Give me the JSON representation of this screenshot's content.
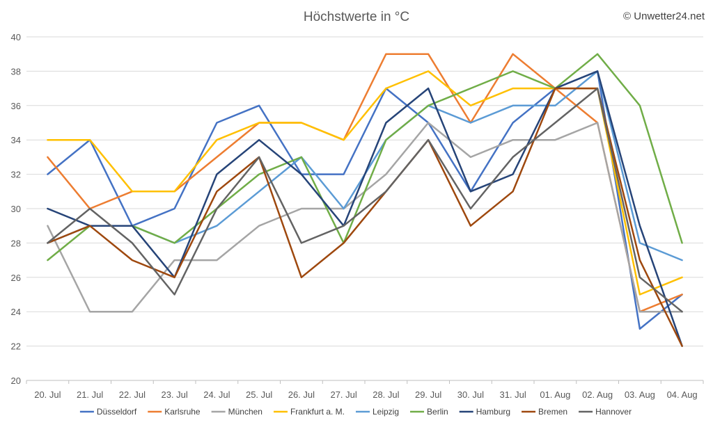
{
  "chart_data": {
    "type": "line",
    "title": "Höchstwerte in °C",
    "copyright": "© Unwetter24.net",
    "xlabel": "",
    "ylabel": "",
    "ylim": [
      20,
      40
    ],
    "yticks": [
      20,
      22,
      24,
      26,
      28,
      30,
      32,
      34,
      36,
      38,
      40
    ],
    "grid": true,
    "legend_position": "bottom",
    "categories": [
      "20. Jul",
      "21. Jul",
      "22. Jul",
      "23. Jul",
      "24. Jul",
      "25. Jul",
      "26. Jul",
      "27. Jul",
      "28. Jul",
      "29. Jul",
      "30. Jul",
      "31. Jul",
      "01. Aug",
      "02. Aug",
      "03. Aug",
      "04. Aug"
    ],
    "series": [
      {
        "name": "Düsseldorf",
        "color": "#4472C4",
        "values": [
          32,
          34,
          29,
          30,
          35,
          36,
          32,
          32,
          37,
          35,
          31,
          35,
          37,
          38,
          23,
          25
        ]
      },
      {
        "name": "Karlsruhe",
        "color": "#ED7D31",
        "values": [
          33,
          30,
          31,
          31,
          33,
          35,
          35,
          34,
          39,
          39,
          35,
          39,
          37,
          35,
          24,
          25
        ]
      },
      {
        "name": "München",
        "color": "#A5A5A5",
        "values": [
          29,
          24,
          24,
          27,
          27,
          29,
          30,
          30,
          32,
          35,
          33,
          34,
          34,
          35,
          24,
          24
        ]
      },
      {
        "name": "Frankfurt a. M.",
        "color": "#FFC000",
        "values": [
          34,
          34,
          31,
          31,
          34,
          35,
          35,
          34,
          37,
          38,
          36,
          37,
          37,
          37,
          25,
          26
        ]
      },
      {
        "name": "Leipzig",
        "color": "#5B9BD5",
        "values": [
          28,
          29,
          29,
          28,
          29,
          31,
          33,
          30,
          34,
          36,
          35,
          36,
          36,
          38,
          28,
          27
        ]
      },
      {
        "name": "Berlin",
        "color": "#70AD47",
        "values": [
          27,
          29,
          29,
          28,
          30,
          32,
          33,
          28,
          34,
          36,
          37,
          38,
          37,
          39,
          36,
          28
        ]
      },
      {
        "name": "Hamburg",
        "color": "#264478",
        "values": [
          30,
          29,
          29,
          26,
          32,
          34,
          32,
          29,
          35,
          37,
          31,
          32,
          37,
          38,
          29,
          22
        ]
      },
      {
        "name": "Bremen",
        "color": "#9E480E",
        "values": [
          28,
          29,
          27,
          26,
          31,
          33,
          26,
          28,
          31,
          34,
          29,
          31,
          37,
          37,
          27,
          22
        ]
      },
      {
        "name": "Hannover",
        "color": "#636363",
        "values": [
          28,
          30,
          28,
          25,
          30,
          33,
          28,
          29,
          31,
          34,
          30,
          33,
          35,
          37,
          26,
          24
        ]
      }
    ]
  }
}
